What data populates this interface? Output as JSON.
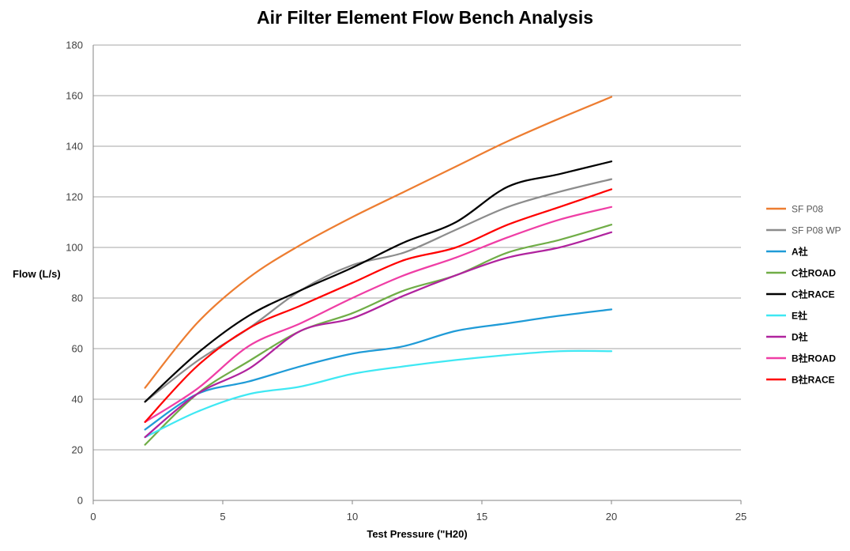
{
  "chart_data": {
    "type": "line",
    "title": "Air Filter Element Flow Bench Analysis",
    "xlabel": "Test Pressure (\"H20)",
    "ylabel": "Flow (L/s)",
    "xlim": [
      0,
      25
    ],
    "ylim": [
      0,
      180
    ],
    "xticks": [
      0,
      5,
      10,
      15,
      20,
      25
    ],
    "yticks": [
      0,
      20,
      40,
      60,
      80,
      100,
      120,
      140,
      160,
      180
    ],
    "grid": "horizontal",
    "legend_position": "right",
    "x": [
      2,
      4,
      6,
      8,
      10,
      12,
      14,
      16,
      18,
      20
    ],
    "series": [
      {
        "name": "SF P08",
        "color": "#ED7D31",
        "bold": false,
        "values": [
          44.5,
          70,
          88,
          101,
          112,
          122,
          132,
          142,
          151,
          159.5
        ]
      },
      {
        "name": "SF P08 WP",
        "color": "#8C8C8C",
        "bold": false,
        "values": [
          39,
          55,
          68,
          83,
          93,
          98,
          107,
          116,
          122,
          127
        ]
      },
      {
        "name": "A社",
        "color": "#1F9BD7",
        "bold": true,
        "values": [
          28,
          42,
          47,
          53,
          58,
          61,
          67,
          70,
          73,
          75.5
        ]
      },
      {
        "name": "C社ROAD",
        "color": "#70AD47",
        "bold": true,
        "values": [
          22,
          42,
          55,
          67,
          74,
          83,
          89,
          98,
          103,
          109
        ]
      },
      {
        "name": "C社RACE",
        "color": "#000000",
        "bold": true,
        "values": [
          39,
          58,
          73,
          83,
          92,
          102,
          110,
          124,
          129,
          134
        ]
      },
      {
        "name": "E社",
        "color": "#3FE8F3",
        "bold": true,
        "values": [
          25,
          35,
          42,
          45,
          50,
          53,
          55.5,
          57.5,
          59,
          59
        ]
      },
      {
        "name": "D社",
        "color": "#B0239E",
        "bold": true,
        "values": [
          25,
          42,
          52,
          67,
          72,
          81,
          89,
          96,
          100,
          106
        ]
      },
      {
        "name": "B社ROAD",
        "color": "#EF3EA5",
        "bold": true,
        "values": [
          31,
          44,
          61,
          70,
          80,
          89,
          96,
          104,
          111,
          116
        ]
      },
      {
        "name": "B社RACE",
        "color": "#FF0000",
        "bold": true,
        "values": [
          31,
          53,
          68,
          77,
          86,
          95,
          100,
          109,
          116,
          123
        ]
      }
    ]
  }
}
